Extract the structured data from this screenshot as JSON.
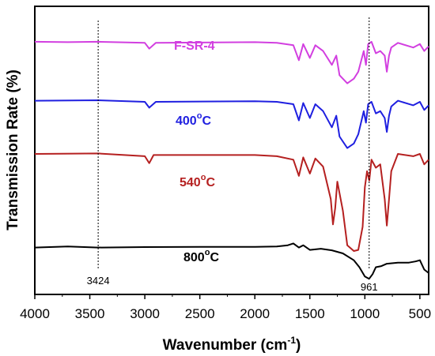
{
  "chart_data": {
    "type": "line",
    "xlabel": "Wavenumber (cm",
    "xlabel_sup": "-1",
    "xlabel_end": ")",
    "ylabel": "Transmission Rate (%)",
    "xlim": [
      4000,
      420
    ],
    "x_reversed": true,
    "x_ticks": [
      4000,
      3500,
      3000,
      2500,
      2000,
      1500,
      1000,
      500
    ],
    "y_ticks_shown": false,
    "grid": false,
    "annotations": [
      {
        "x": 3424,
        "label": "3424"
      },
      {
        "x": 961,
        "label": "961"
      }
    ],
    "series": [
      {
        "name": "F-SR-4",
        "label_parts": [
          "F-SR-4",
          "",
          ""
        ],
        "color": "#d23fe0",
        "x": [
          4000,
          3700,
          3424,
          3000,
          2960,
          2900,
          2000,
          1800,
          1650,
          1600,
          1560,
          1500,
          1450,
          1380,
          1300,
          1260,
          1230,
          1160,
          1100,
          1060,
          1010,
          990,
          970,
          940,
          900,
          860,
          820,
          800,
          780,
          760,
          700,
          560,
          500,
          460,
          420
        ],
        "y": [
          98.0,
          97.8,
          98.0,
          97.5,
          95.0,
          97.5,
          97.8,
          97.5,
          96.5,
          90.0,
          97.0,
          91.0,
          96.5,
          94.0,
          88.0,
          92.0,
          83.5,
          80.0,
          82.0,
          85.0,
          94.0,
          88.0,
          97.0,
          98.0,
          93.0,
          94.0,
          92.0,
          85.0,
          92.0,
          95.5,
          97.5,
          95.5,
          97.0,
          94.0,
          96.0
        ]
      },
      {
        "name": "400°C",
        "label_parts": [
          "400",
          "o",
          "C"
        ],
        "color": "#1f1fe0",
        "x": [
          4000,
          3424,
          3000,
          2960,
          2900,
          2000,
          1800,
          1650,
          1600,
          1560,
          1500,
          1450,
          1380,
          1300,
          1260,
          1230,
          1160,
          1100,
          1060,
          1010,
          990,
          970,
          940,
          900,
          860,
          820,
          800,
          780,
          760,
          700,
          560,
          500,
          460,
          420
        ],
        "y": [
          72.5,
          72.7,
          72.0,
          69.5,
          72.0,
          72.3,
          72.0,
          71.0,
          64.0,
          71.5,
          65.0,
          71.0,
          68.0,
          61.0,
          66.0,
          57.0,
          52.0,
          54.0,
          58.0,
          68.0,
          63.0,
          71.0,
          72.0,
          67.0,
          68.0,
          65.0,
          59.0,
          66.0,
          70.0,
          72.5,
          70.5,
          72.0,
          68.5,
          70.5
        ]
      },
      {
        "name": "540°C",
        "label_parts": [
          "540",
          "o",
          "C"
        ],
        "color": "#b52020",
        "x": [
          4000,
          3424,
          3000,
          2960,
          2920,
          2000,
          1800,
          1650,
          1600,
          1560,
          1500,
          1450,
          1380,
          1310,
          1290,
          1270,
          1250,
          1200,
          1160,
          1100,
          1060,
          1020,
          1000,
          980,
          960,
          940,
          900,
          860,
          820,
          800,
          780,
          760,
          700,
          560,
          500,
          460,
          420
        ],
        "y": [
          49.5,
          49.7,
          48.5,
          45.5,
          49.0,
          49.0,
          48.5,
          47.0,
          40.0,
          48.0,
          41.0,
          47.5,
          44.0,
          30.0,
          19.0,
          26.0,
          37.5,
          25.0,
          10.0,
          7.5,
          8.0,
          18.0,
          35.0,
          42.0,
          38.0,
          47.0,
          43.5,
          45.0,
          30.0,
          18.5,
          30.0,
          42.0,
          49.5,
          48.5,
          49.5,
          45.0,
          47.0
        ]
      },
      {
        "name": "800°C",
        "label_parts": [
          "800",
          "o",
          "C"
        ],
        "color": "#000000",
        "x": [
          4000,
          3700,
          3424,
          3000,
          2500,
          2000,
          1800,
          1700,
          1650,
          1600,
          1560,
          1500,
          1400,
          1300,
          1200,
          1100,
          1050,
          1000,
          961,
          930,
          900,
          850,
          800,
          700,
          600,
          540,
          500,
          460,
          420
        ],
        "y": [
          9.0,
          9.5,
          9.0,
          9.2,
          9.3,
          9.3,
          9.5,
          10.0,
          10.8,
          9.0,
          10.0,
          8.0,
          8.5,
          7.8,
          6.5,
          3.5,
          0.5,
          -3.5,
          -4.5,
          -2.5,
          0.5,
          1.0,
          2.0,
          2.5,
          2.5,
          3.0,
          3.5,
          -0.5,
          -2.0
        ]
      }
    ]
  }
}
